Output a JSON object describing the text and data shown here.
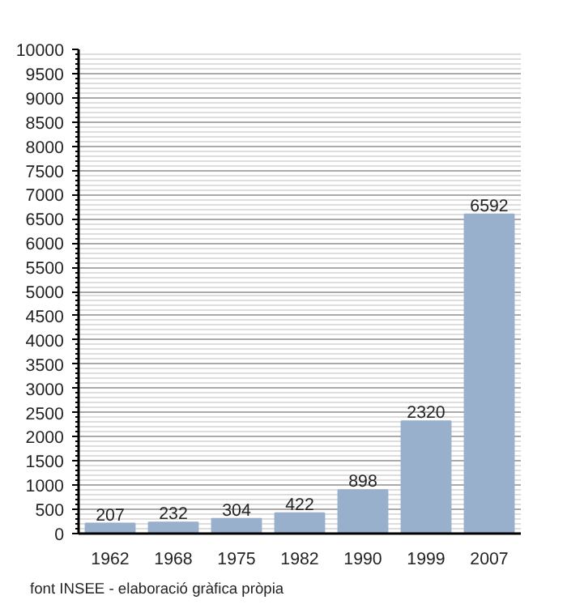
{
  "chart_data": {
    "type": "bar",
    "categories": [
      "1962",
      "1968",
      "1975",
      "1982",
      "1990",
      "1999",
      "2007"
    ],
    "values": [
      207,
      232,
      304,
      422,
      898,
      2320,
      6592
    ],
    "color": "#98b0cc",
    "data_labels": true,
    "ylim": [
      0,
      10000
    ],
    "yticks": [
      0,
      500,
      1000,
      1500,
      2000,
      2500,
      3000,
      3500,
      4000,
      4500,
      5000,
      5500,
      6000,
      6500,
      7000,
      7500,
      8000,
      8500,
      9000,
      9500,
      10000
    ],
    "grid": "y",
    "annotations": [
      "font INSEE - elaboració gràfica pròpia"
    ]
  }
}
